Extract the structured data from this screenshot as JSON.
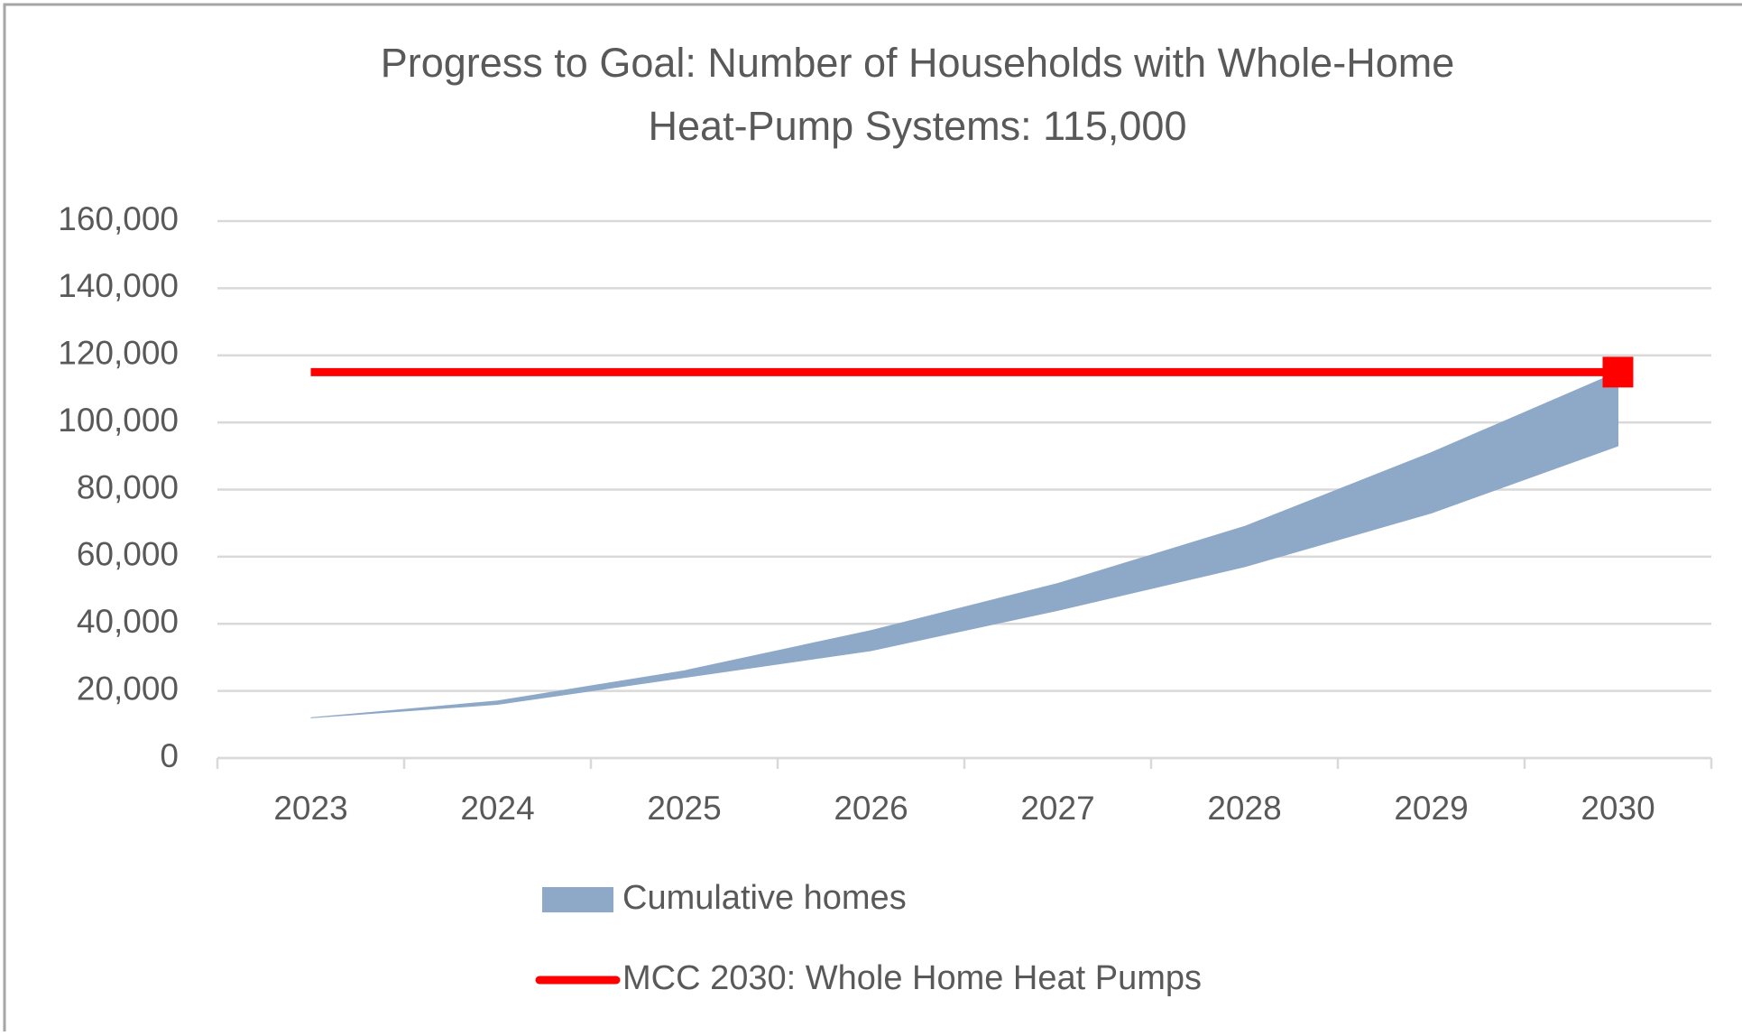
{
  "chart_data": {
    "type": "area",
    "title": [
      "Progress to Goal: Number of Households with Whole-Home",
      "Heat-Pump Systems: 115,000"
    ],
    "categories": [
      "2023",
      "2024",
      "2025",
      "2026",
      "2027",
      "2028",
      "2029",
      "2030"
    ],
    "series": [
      {
        "name": "Cumulative homes",
        "color": "#8ea9c7",
        "lower": [
          12000,
          16000,
          24000,
          32000,
          44000,
          57000,
          73000,
          93000
        ],
        "upper": [
          12000,
          17000,
          26000,
          38000,
          52000,
          69000,
          91000,
          115000
        ]
      },
      {
        "name": "MCC 2030: Whole Home Heat Pumps",
        "color": "#ff0000",
        "values": [
          115000,
          115000,
          115000,
          115000,
          115000,
          115000,
          115000,
          115000
        ],
        "marker_index": 7
      }
    ],
    "ylim": [
      0,
      160000
    ],
    "yticks": [
      0,
      {
        "value": 20000,
        "label": "20,000"
      },
      {
        "value": 40000,
        "label": "40,000"
      },
      {
        "value": 60000,
        "label": "60,000"
      },
      {
        "value": 80000,
        "label": "80,000"
      },
      {
        "value": 100000,
        "label": "100,000"
      },
      {
        "value": 120000,
        "label": "120,000"
      },
      {
        "value": 140000,
        "label": "140,000"
      },
      {
        "value": 160000,
        "label": "160,000"
      }
    ],
    "grid": true,
    "legend": "bottom"
  }
}
